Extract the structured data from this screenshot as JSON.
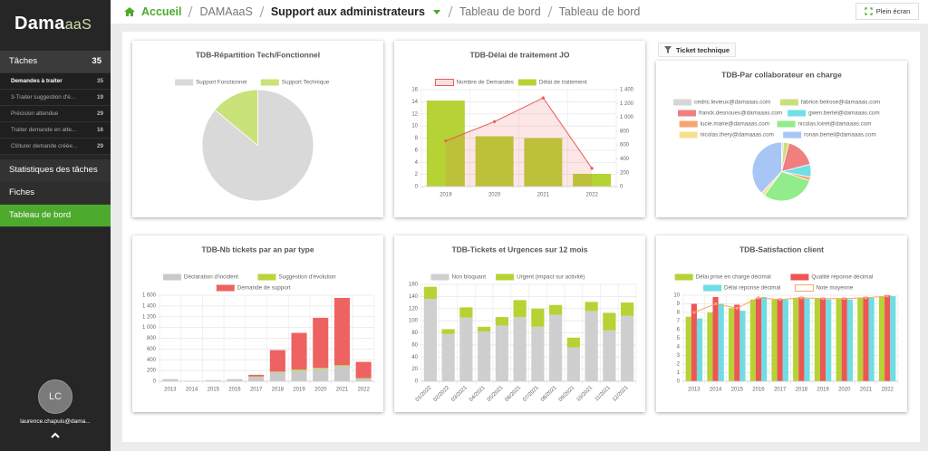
{
  "logo": {
    "main": "Dama",
    "suffix": "aaS"
  },
  "sidebar": {
    "sections": [
      {
        "label": "Tâches",
        "count": 35,
        "items": [
          {
            "label": "Demandes à traiter",
            "count": 35
          },
          {
            "label": "3-Traiter suggestion d'é...",
            "count": 19
          },
          {
            "label": "Précision attendue",
            "count": 29
          },
          {
            "label": "Traiter demande en atte...",
            "count": 16
          },
          {
            "label": "Clôturer demande créée...",
            "count": 29
          }
        ]
      },
      {
        "label": "Statistiques des tâches"
      },
      {
        "label": "Fiches"
      },
      {
        "label": "Tableau de bord"
      }
    ]
  },
  "user": {
    "initials": "LC",
    "email": "laurence.chapuis@dama..."
  },
  "breadcrumb": [
    "Accueil",
    "DAMAaaS",
    "Support aux administrateurs",
    "Tableau de bord",
    "Tableau de bord"
  ],
  "fullscreen_button": "Plein écran",
  "filter_button": "Ticket technique",
  "chart_data": [
    {
      "type": "pie",
      "title": "TDB-Répartition Tech/Fonctionnel",
      "categories": [
        "Support Fonctionnel",
        "Support Technique"
      ],
      "values": [
        86,
        14
      ],
      "colors": [
        "#d9d9d9",
        "#c9e27a"
      ]
    },
    {
      "type": "bar",
      "title": "TDB-Délai de traitement JO",
      "categories": [
        "2019",
        "2020",
        "2021",
        "2022"
      ],
      "series": [
        {
          "name": "Nombre de Demandes",
          "type": "line",
          "axis": "y2",
          "area": true,
          "color": "#e8595a",
          "values": [
            660,
            938,
            1281,
            264
          ]
        },
        {
          "name": "Délai de traitement",
          "color": "#b5d334",
          "values": [
            14.2,
            8.3,
            8,
            2.1
          ]
        }
      ],
      "ylim": [
        0,
        16
      ],
      "yticks": [
        0,
        2,
        4,
        6,
        8,
        10,
        12,
        14,
        16
      ],
      "y2lim": [
        0,
        1400
      ],
      "y2ticks": [
        0,
        200,
        400,
        600,
        800,
        {
          "value": 1000,
          "label": "1 000"
        },
        {
          "value": 1200,
          "label": "1 200"
        },
        {
          "value": 1400,
          "label": "1 400"
        }
      ],
      "grid": true
    },
    {
      "type": "pie",
      "title": "TDB-Par collaborateur en charge",
      "categories": [
        "cedric.levieux@damaaas.com",
        "fabrice.belrose@damaaas.com",
        "franck.desnoues@damaaas.com",
        "gwen.bertel@damaaas.com",
        "lucie.marie@damaaas.com",
        "nicolas.loiret@damaaas.com",
        "nicolas.thery@damaaas.com",
        "ronan.bertel@damaaas.com"
      ],
      "values": [
        1,
        3,
        17,
        7,
        2,
        30,
        2,
        38
      ],
      "colors": [
        "#d6d6d6",
        "#c8e07c",
        "#f07f7f",
        "#72dfe6",
        "#f6a670",
        "#93ec8c",
        "#f7e08c",
        "#a8c6f5"
      ]
    },
    {
      "type": "bar",
      "title": "TDB-Nb tickets par an par type",
      "stacked": true,
      "categories": [
        "2013",
        "2014",
        "2015",
        "2016",
        "2017",
        "2018",
        "2019",
        "2020",
        "2021",
        "2022"
      ],
      "series": [
        {
          "name": "Déclaration d'incident",
          "color": "#c9c9c9",
          "values": [
            40,
            10,
            20,
            40,
            80,
            170,
            200,
            230,
            280,
            50
          ]
        },
        {
          "name": "Suggestion d'évolution",
          "color": "#b8d53a",
          "values": [
            0,
            0,
            0,
            0,
            10,
            10,
            20,
            20,
            20,
            10
          ]
        },
        {
          "name": "Demande de support",
          "color": "#ee6262",
          "values": [
            0,
            0,
            0,
            0,
            30,
            400,
            680,
            930,
            1250,
            300
          ]
        }
      ],
      "ylim": [
        0,
        1600
      ],
      "yticks": [
        0,
        200,
        400,
        600,
        800,
        {
          "value": 1000,
          "label": "1 000"
        },
        {
          "value": 1200,
          "label": "1 200"
        },
        {
          "value": 1400,
          "label": "1 400"
        },
        {
          "value": 1600,
          "label": "1 600"
        }
      ],
      "grid": true
    },
    {
      "type": "bar",
      "title": "TDB-Tickets et Urgences sur 12 mois",
      "stacked": true,
      "categories": [
        "01/2022",
        "02/2022",
        "03/2021",
        "04/2021",
        "05/2021",
        "06/2021",
        "07/2021",
        "08/2021",
        "09/2021",
        "10/2021",
        "11/2021",
        "12/2021"
      ],
      "series": [
        {
          "name": "Non bloquant",
          "color": "#cfcfcf",
          "values": [
            136,
            78,
            105,
            82,
            92,
            106,
            90,
            110,
            56,
            116,
            84,
            108
          ]
        },
        {
          "name": "Urgent (impact sur activité)",
          "color": "#b5d334",
          "values": [
            20,
            8,
            17,
            8,
            14,
            28,
            30,
            16,
            16,
            15,
            29,
            22
          ]
        }
      ],
      "ylim": [
        0,
        160
      ],
      "yticks": [
        0,
        20,
        40,
        60,
        80,
        100,
        120,
        140,
        160
      ],
      "grid": true
    },
    {
      "type": "bar",
      "title": "TDB-Satisfaction client",
      "categories": [
        "2013",
        "2014",
        "2015",
        "2016",
        "2017",
        "2018",
        "2019",
        "2020",
        "2021",
        "2022"
      ],
      "series": [
        {
          "name": "Délai prise en charge décimal",
          "color": "#b5d334",
          "values": [
            7.5,
            8,
            8.5,
            9.5,
            9.5,
            9.7,
            9.6,
            9.6,
            9.7,
            9.8
          ]
        },
        {
          "name": "Qualité réponse décimal",
          "color": "#ee5555",
          "values": [
            9,
            9.8,
            8.9,
            9.7,
            9.6,
            9.8,
            9.7,
            9.7,
            9.8,
            10
          ]
        },
        {
          "name": "Délai réponse décimal",
          "color": "#6fdde3",
          "values": [
            7.3,
            9,
            8.2,
            9.8,
            9.5,
            9.6,
            9.5,
            9.5,
            9.7,
            9.9
          ]
        },
        {
          "name": "Note moyenne",
          "type": "line",
          "color": "#f4a66b",
          "values": [
            8,
            9,
            8.5,
            9.7,
            9.5,
            9.7,
            9.6,
            9.6,
            9.7,
            9.9
          ]
        }
      ],
      "ylim": [
        0,
        10
      ],
      "yticks": [
        0,
        1,
        2,
        3,
        4,
        5,
        6,
        7,
        8,
        9,
        10
      ],
      "grid": true
    }
  ]
}
